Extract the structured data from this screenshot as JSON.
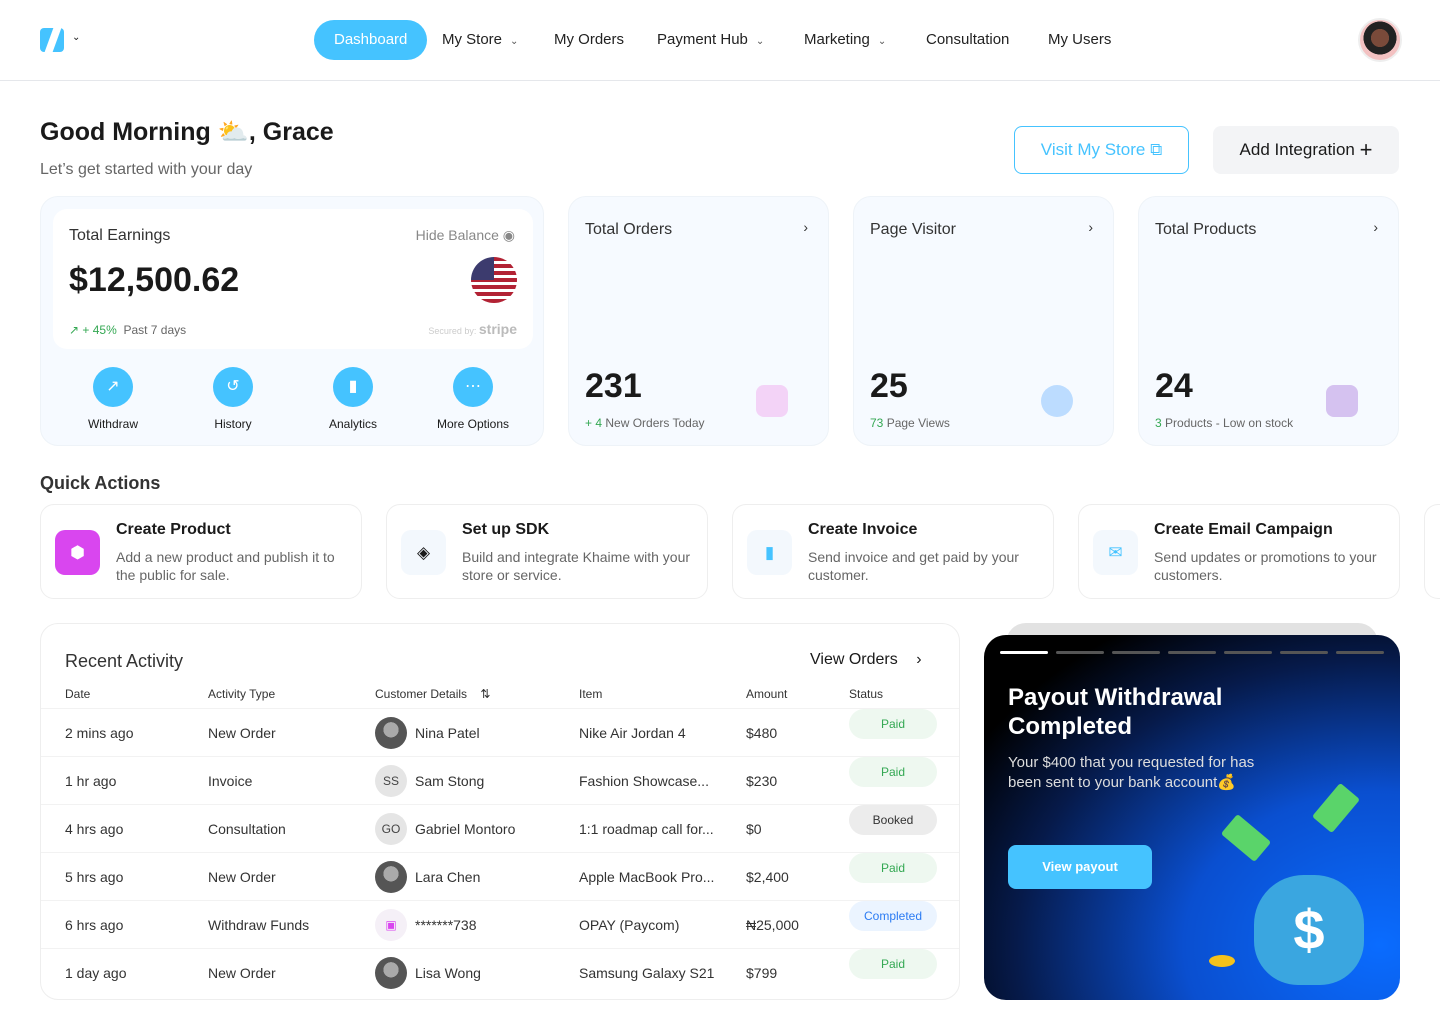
{
  "nav": {
    "items": [
      {
        "label": "Dashboard",
        "active": true
      },
      {
        "label": "My Store",
        "dropdown": true
      },
      {
        "label": "My Orders"
      },
      {
        "label": "Payment Hub",
        "dropdown": true
      },
      {
        "label": "Marketing",
        "dropdown": true
      },
      {
        "label": "Consultation"
      },
      {
        "label": "My Users"
      }
    ]
  },
  "greeting": {
    "title": "Good Morning",
    "emoji": "⛅",
    "name": ", Grace",
    "subtitle": "Let’s get started with your day"
  },
  "actions": {
    "visit_store": "Visit My Store",
    "add_integration": "Add Integration"
  },
  "earnings": {
    "title": "Total Earnings",
    "hide_balance": "Hide Balance",
    "amount": "$12,500.62",
    "change": "+ 45%",
    "period": "Past 7 days",
    "secured": "Secured by:",
    "stripe": "stripe",
    "buttons": [
      {
        "label": "Withdraw",
        "icon": "arrow-up-right-icon"
      },
      {
        "label": "History",
        "icon": "history-icon"
      },
      {
        "label": "Analytics",
        "icon": "bar-chart-icon"
      },
      {
        "label": "More Options",
        "icon": "more-icon"
      }
    ]
  },
  "stats": [
    {
      "title": "Total Orders",
      "value": "231",
      "hl": "+ 4",
      "sub": "New Orders Today",
      "icon": "basket-icon"
    },
    {
      "title": "Page Visitor",
      "value": "25",
      "hl": "73",
      "sub": "Page Views",
      "icon": "globe-icon"
    },
    {
      "title": "Total Products",
      "value": "24",
      "hl": "3",
      "sub": "Products - Low on stock",
      "icon": "box-icon"
    }
  ],
  "quick_actions": {
    "title": "Quick Actions",
    "items": [
      {
        "title": "Create Product",
        "desc": "Add a new product and publish it to the public for sale."
      },
      {
        "title": "Set up SDK",
        "desc": "Build and integrate Khaime with your store or service."
      },
      {
        "title": "Create Invoice",
        "desc": "Send invoice and get paid by your customer."
      },
      {
        "title": "Create Email Campaign",
        "desc": "Send updates or promotions to your customers."
      }
    ]
  },
  "activity": {
    "title": "Recent Activity",
    "view_orders": "View Orders",
    "columns": [
      "Date",
      "Activity Type",
      "Customer Details",
      "Item",
      "Amount",
      "Status"
    ],
    "rows": [
      {
        "date": "2 mins ago",
        "type": "New Order",
        "initials": "",
        "name": "Nina Patel",
        "item": "Nike Air Jordan 4",
        "amount": "$480",
        "status": "Paid"
      },
      {
        "date": "1 hr ago",
        "type": "Invoice",
        "initials": "SS",
        "name": "Sam Stong",
        "item": "Fashion Showcase...",
        "amount": "$230",
        "status": "Paid"
      },
      {
        "date": "4 hrs ago",
        "type": "Consultation",
        "initials": "GO",
        "name": "Gabriel Montoro",
        "item": "1:1 roadmap call for...",
        "amount": "$0",
        "status": "Booked"
      },
      {
        "date": "5 hrs ago",
        "type": "New Order",
        "initials": "",
        "name": "Lara Chen",
        "item": "Apple MacBook Pro...",
        "amount": "$2,400",
        "status": "Paid"
      },
      {
        "date": "6 hrs ago",
        "type": "Withdraw Funds",
        "initials": "",
        "name": "*******738",
        "item": "OPAY (Paycom)",
        "amount": "₦25,000",
        "status": "Completed"
      },
      {
        "date": "1 day ago",
        "type": "New Order",
        "initials": "",
        "name": "Lisa Wong",
        "item": "Samsung Galaxy S21",
        "amount": "$799",
        "status": "Paid"
      }
    ]
  },
  "promo": {
    "title": "Payout Withdrawal Completed",
    "body": "Your $400 that you requested for has been sent to your bank account💰",
    "button": "View payout",
    "slides": 7,
    "active_slide": 1
  },
  "colors": {
    "accent": "#45c3ff",
    "paid": "#34a853",
    "completed": "#2b7bf3"
  }
}
